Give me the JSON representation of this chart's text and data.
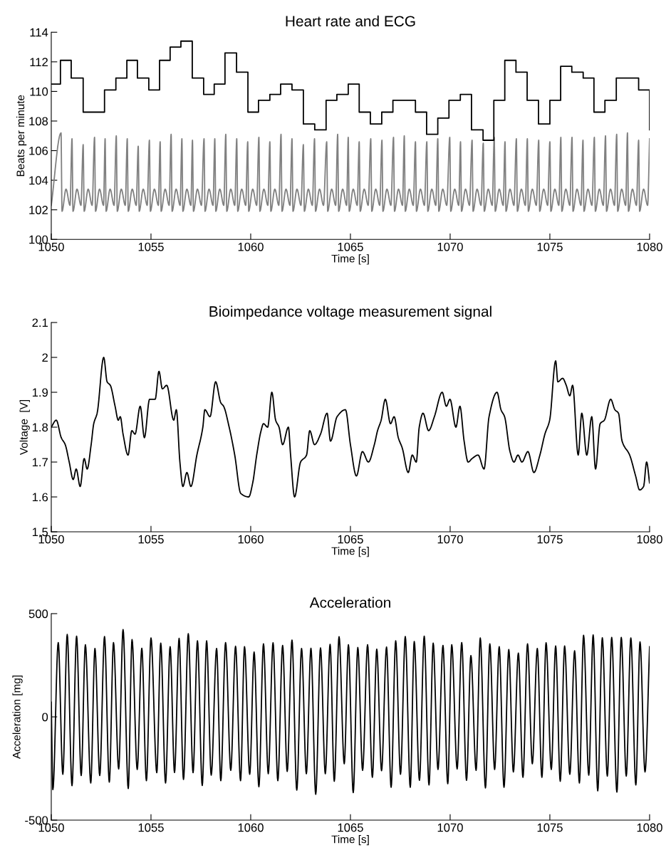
{
  "chart_data": [
    {
      "type": "line",
      "title": "Heart rate and ECG",
      "xlabel": "Time [s]",
      "ylabel": "Beats per minute",
      "xlim": [
        1050,
        1080
      ],
      "ylim": [
        100,
        114
      ],
      "xticks": [
        1050,
        1055,
        1060,
        1065,
        1070,
        1075,
        1080
      ],
      "yticks": [
        100,
        102,
        104,
        106,
        108,
        110,
        112,
        114
      ],
      "series": [
        {
          "type": "line",
          "color": "#808080",
          "x": [
            1050.0,
            1050.49,
            1050.54,
            1050.74,
            1050.94,
            1051.04,
            1051.09,
            1051.29,
            1051.49,
            1051.6,
            1051.65,
            1051.85,
            1052.05,
            1052.17,
            1052.22,
            1052.42,
            1052.62,
            1052.7,
            1052.75,
            1052.95,
            1053.15,
            1053.26,
            1053.31,
            1053.51,
            1053.71,
            1053.81,
            1053.86,
            1054.06,
            1054.26,
            1054.36,
            1054.41,
            1054.61,
            1054.81,
            1054.92,
            1054.97,
            1055.17,
            1055.37,
            1055.46,
            1055.51,
            1055.71,
            1055.91,
            1056.01,
            1056.06,
            1056.26,
            1056.46,
            1056.55,
            1056.6,
            1056.8,
            1057.0,
            1057.08,
            1057.13,
            1057.33,
            1057.53,
            1057.66,
            1057.71,
            1057.91,
            1058.11,
            1058.2,
            1058.25,
            1058.45,
            1058.65,
            1058.75,
            1058.8,
            1059.0,
            1059.2,
            1059.3,
            1059.35,
            1059.55,
            1059.75,
            1059.85,
            1059.9,
            1060.1,
            1060.3,
            1060.41,
            1060.46,
            1060.66,
            1060.86,
            1060.96,
            1061.01,
            1061.21,
            1061.41,
            1061.52,
            1061.57,
            1061.77,
            1061.97,
            1062.07,
            1062.12,
            1062.32,
            1062.52,
            1062.64,
            1062.69,
            1062.89,
            1063.09,
            1063.2,
            1063.25,
            1063.45,
            1063.65,
            1063.81,
            1063.86,
            1064.06,
            1064.26,
            1064.36,
            1064.41,
            1064.61,
            1064.81,
            1064.89,
            1064.94,
            1065.14,
            1065.34,
            1065.44,
            1065.49,
            1065.69,
            1065.89,
            1066.02,
            1066.07,
            1066.27,
            1066.47,
            1066.58,
            1066.63,
            1066.83,
            1067.03,
            1067.16,
            1067.21,
            1067.41,
            1067.61,
            1067.7,
            1067.75,
            1067.95,
            1068.15,
            1068.26,
            1068.31,
            1068.51,
            1068.71,
            1068.83,
            1068.88,
            1069.08,
            1069.28,
            1069.38,
            1069.43,
            1069.63,
            1069.83,
            1069.98,
            1070.03,
            1070.23,
            1070.43,
            1070.52,
            1070.57,
            1070.77,
            1070.97,
            1071.1,
            1071.15,
            1071.35,
            1071.55,
            1071.66,
            1071.71,
            1071.91,
            1072.11,
            1072.21,
            1072.26,
            1072.46,
            1072.66,
            1072.75,
            1072.8,
            1073.0,
            1073.2,
            1073.32,
            1073.37,
            1073.57,
            1073.77,
            1073.87,
            1073.92,
            1074.12,
            1074.32,
            1074.44,
            1074.49,
            1074.69,
            1074.89,
            1075.0,
            1075.05,
            1075.25,
            1075.45,
            1075.55,
            1075.6,
            1075.8,
            1076.0,
            1076.11,
            1076.16,
            1076.36,
            1076.56,
            1076.66,
            1076.71,
            1076.91,
            1077.11,
            1077.23,
            1077.28,
            1077.48,
            1077.68,
            1077.79,
            1077.84,
            1078.04,
            1078.24,
            1078.35,
            1078.4,
            1078.6,
            1078.8,
            1078.89,
            1078.94,
            1079.14,
            1079.34,
            1079.45,
            1079.5,
            1079.7,
            1079.9,
            1080.0
          ],
          "values": [
            102.3,
            107.2,
            101.9,
            103.4,
            102.3,
            106.8,
            101.9,
            103.4,
            102.3,
            106.4,
            101.9,
            103.4,
            102.3,
            106.9,
            101.9,
            103.4,
            102.3,
            106.8,
            101.9,
            103.4,
            102.3,
            107.0,
            101.9,
            103.4,
            102.3,
            106.8,
            101.9,
            103.4,
            102.3,
            106.3,
            101.9,
            103.4,
            102.3,
            106.7,
            101.9,
            103.4,
            102.3,
            106.6,
            101.9,
            103.4,
            102.3,
            107.1,
            101.9,
            103.4,
            102.3,
            106.8,
            101.9,
            103.4,
            102.3,
            106.7,
            101.9,
            103.4,
            102.3,
            106.8,
            101.9,
            103.4,
            102.3,
            106.8,
            101.9,
            103.4,
            102.3,
            107.1,
            101.9,
            103.4,
            102.3,
            106.8,
            101.9,
            103.4,
            102.3,
            106.6,
            101.9,
            103.4,
            102.3,
            106.9,
            101.9,
            103.4,
            102.3,
            106.6,
            101.9,
            103.4,
            102.3,
            107.1,
            101.9,
            103.4,
            102.3,
            106.8,
            101.9,
            103.4,
            102.3,
            106.4,
            101.9,
            103.4,
            102.3,
            106.8,
            101.9,
            103.4,
            102.3,
            106.6,
            101.9,
            103.4,
            102.3,
            107.1,
            101.9,
            103.4,
            102.3,
            106.9,
            101.9,
            103.4,
            102.3,
            106.6,
            101.9,
            103.4,
            102.3,
            106.8,
            101.9,
            103.4,
            102.3,
            106.7,
            101.9,
            103.4,
            102.3,
            106.9,
            101.9,
            103.4,
            102.3,
            107.0,
            101.9,
            103.4,
            102.3,
            106.6,
            101.9,
            103.4,
            102.3,
            106.6,
            101.9,
            103.4,
            102.3,
            106.8,
            101.9,
            103.4,
            102.3,
            106.9,
            101.9,
            103.4,
            102.3,
            106.6,
            101.9,
            103.4,
            102.3,
            106.7,
            101.9,
            103.4,
            102.3,
            106.5,
            101.9,
            103.4,
            102.3,
            106.9,
            101.9,
            103.4,
            102.3,
            106.6,
            101.9,
            103.4,
            102.3,
            106.8,
            101.9,
            103.4,
            102.3,
            106.8,
            101.9,
            103.4,
            102.3,
            106.7,
            101.9,
            103.4,
            102.3,
            106.6,
            101.9,
            103.4,
            102.3,
            106.9,
            101.9,
            103.4,
            102.3,
            106.9,
            101.9,
            103.4,
            102.3,
            106.7,
            101.9,
            103.4,
            102.3,
            106.9,
            101.9,
            103.4,
            102.3,
            107.0,
            101.9,
            103.4,
            102.3,
            107.1,
            101.9,
            103.4,
            102.3,
            107.2,
            101.9,
            103.4,
            102.3,
            106.7,
            101.9,
            103.4,
            102.3,
            106.8
          ]
        },
        {
          "type": "step",
          "color": "#000000",
          "x": [
            1050.0,
            1050.46,
            1051.0,
            1051.6,
            1052.67,
            1053.24,
            1053.79,
            1054.32,
            1054.89,
            1055.43,
            1055.96,
            1056.5,
            1057.07,
            1057.64,
            1058.17,
            1058.71,
            1059.29,
            1059.86,
            1060.39,
            1060.96,
            1061.5,
            1062.07,
            1062.64,
            1063.21,
            1063.78,
            1064.32,
            1064.89,
            1065.44,
            1066.0,
            1066.57,
            1067.13,
            1068.26,
            1068.82,
            1069.38,
            1069.94,
            1070.51,
            1071.07,
            1071.65,
            1072.19,
            1072.74,
            1073.3,
            1073.86,
            1074.43,
            1075.0,
            1075.54,
            1076.1,
            1076.67,
            1077.21,
            1077.76,
            1078.33,
            1079.45,
            1080.0
          ],
          "values": [
            110.5,
            112.1,
            110.9,
            108.6,
            110.1,
            110.9,
            112.1,
            110.9,
            110.1,
            112.1,
            113.0,
            113.4,
            110.9,
            109.8,
            110.5,
            112.6,
            111.3,
            108.6,
            109.4,
            109.8,
            110.5,
            110.1,
            107.8,
            107.4,
            109.4,
            109.8,
            110.5,
            108.6,
            107.8,
            108.6,
            109.4,
            108.6,
            107.1,
            108.2,
            109.4,
            109.8,
            107.4,
            106.7,
            109.4,
            112.1,
            111.3,
            109.4,
            107.8,
            109.4,
            111.7,
            111.3,
            110.9,
            108.6,
            109.4,
            110.9,
            110.1,
            107.4
          ]
        }
      ]
    },
    {
      "type": "line",
      "title": "Bioimpedance voltage measurement signal",
      "xlabel": "Time [s]",
      "ylabel": "Voltage  [V]",
      "xlim": [
        1050,
        1080
      ],
      "ylim": [
        1.5,
        2.1
      ],
      "xticks": [
        1050,
        1055,
        1060,
        1065,
        1070,
        1075,
        1080
      ],
      "yticks": [
        1.5,
        1.6,
        1.7,
        1.8,
        1.9,
        2,
        2.1
      ],
      "series": [
        {
          "type": "line",
          "color": "#000000",
          "x": [
            1050.0,
            1050.25,
            1050.5,
            1050.7,
            1050.9,
            1051.1,
            1051.25,
            1051.45,
            1051.65,
            1051.8,
            1052.0,
            1052.13,
            1052.3,
            1052.63,
            1052.8,
            1052.96,
            1053.2,
            1053.36,
            1053.46,
            1053.6,
            1053.85,
            1054.04,
            1054.2,
            1054.46,
            1054.67,
            1054.93,
            1055.21,
            1055.4,
            1055.57,
            1055.79,
            1056.14,
            1056.27,
            1056.45,
            1056.6,
            1056.8,
            1057.0,
            1057.3,
            1057.6,
            1057.7,
            1057.96,
            1058.24,
            1058.5,
            1058.64,
            1058.92,
            1059.2,
            1059.5,
            1059.9,
            1060.1,
            1060.3,
            1060.52,
            1060.64,
            1060.85,
            1061.06,
            1061.25,
            1061.42,
            1061.6,
            1061.89,
            1062.0,
            1062.2,
            1062.5,
            1062.8,
            1062.96,
            1063.2,
            1063.5,
            1063.83,
            1064.0,
            1064.33,
            1064.75,
            1065.0,
            1065.3,
            1065.6,
            1065.9,
            1066.2,
            1066.36,
            1066.54,
            1066.75,
            1067.01,
            1067.19,
            1067.4,
            1067.6,
            1067.9,
            1068.1,
            1068.3,
            1068.45,
            1068.64,
            1068.92,
            1069.21,
            1069.6,
            1069.81,
            1069.99,
            1070.29,
            1070.49,
            1070.7,
            1070.9,
            1071.1,
            1071.4,
            1071.7,
            1071.95,
            1072.35,
            1072.55,
            1072.73,
            1073.0,
            1073.2,
            1073.4,
            1073.6,
            1073.9,
            1074.2,
            1074.5,
            1074.75,
            1074.99,
            1075.29,
            1075.4,
            1075.64,
            1075.82,
            1076.0,
            1076.14,
            1076.42,
            1076.6,
            1076.85,
            1077.1,
            1077.29,
            1077.52,
            1077.73,
            1078.05,
            1078.26,
            1078.44,
            1078.62,
            1079.0,
            1079.3,
            1079.5,
            1079.7,
            1079.85,
            1080.0
          ],
          "values": [
            1.8,
            1.82,
            1.77,
            1.75,
            1.7,
            1.65,
            1.68,
            1.63,
            1.71,
            1.68,
            1.75,
            1.81,
            1.84,
            2.0,
            1.93,
            1.92,
            1.86,
            1.82,
            1.83,
            1.78,
            1.72,
            1.79,
            1.78,
            1.86,
            1.77,
            1.88,
            1.88,
            1.96,
            1.91,
            1.92,
            1.82,
            1.85,
            1.7,
            1.63,
            1.67,
            1.63,
            1.72,
            1.8,
            1.85,
            1.83,
            1.93,
            1.87,
            1.86,
            1.8,
            1.72,
            1.61,
            1.6,
            1.64,
            1.72,
            1.79,
            1.81,
            1.8,
            1.9,
            1.82,
            1.8,
            1.75,
            1.8,
            1.72,
            1.6,
            1.7,
            1.72,
            1.79,
            1.75,
            1.78,
            1.84,
            1.76,
            1.83,
            1.85,
            1.75,
            1.66,
            1.73,
            1.7,
            1.75,
            1.79,
            1.82,
            1.88,
            1.81,
            1.83,
            1.77,
            1.74,
            1.67,
            1.72,
            1.7,
            1.8,
            1.84,
            1.79,
            1.83,
            1.9,
            1.86,
            1.88,
            1.8,
            1.86,
            1.76,
            1.7,
            1.71,
            1.72,
            1.68,
            1.83,
            1.9,
            1.85,
            1.83,
            1.73,
            1.7,
            1.72,
            1.7,
            1.73,
            1.67,
            1.72,
            1.78,
            1.82,
            1.99,
            1.93,
            1.94,
            1.92,
            1.89,
            1.92,
            1.72,
            1.84,
            1.72,
            1.83,
            1.68,
            1.81,
            1.82,
            1.88,
            1.85,
            1.84,
            1.76,
            1.72,
            1.66,
            1.62,
            1.63,
            1.7,
            1.64
          ]
        }
      ]
    },
    {
      "type": "line",
      "title": "Acceleration",
      "xlabel": "Time [s]",
      "ylabel": "Acceleration [mg]",
      "xlim": [
        1050,
        1080
      ],
      "ylim": [
        -500,
        500
      ],
      "xticks": [
        1050,
        1055,
        1060,
        1065,
        1070,
        1075,
        1080
      ],
      "yticks": [
        -500,
        0,
        500
      ],
      "series": [
        {
          "type": "line",
          "color": "#000000",
          "x": [
            1050.0,
            1050.08,
            1050.35,
            1050.58,
            1050.8,
            1051.04,
            1051.27,
            1051.5,
            1051.71,
            1051.98,
            1052.19,
            1052.43,
            1052.67,
            1052.91,
            1053.12,
            1053.38,
            1053.6,
            1053.86,
            1054.05,
            1054.31,
            1054.54,
            1054.77,
            1055.0,
            1055.29,
            1055.49,
            1055.73,
            1055.96,
            1056.18,
            1056.41,
            1056.63,
            1056.87,
            1057.11,
            1057.33,
            1057.57,
            1057.79,
            1058.02,
            1058.29,
            1058.5,
            1058.74,
            1059.0,
            1059.24,
            1059.49,
            1059.69,
            1059.95,
            1060.17,
            1060.41,
            1060.64,
            1060.88,
            1061.12,
            1061.36,
            1061.6,
            1061.83,
            1062.07,
            1062.31,
            1062.55,
            1062.79,
            1063.02,
            1063.26,
            1063.5,
            1063.74,
            1063.98,
            1064.19,
            1064.43,
            1064.69,
            1064.9,
            1065.14,
            1065.37,
            1065.61,
            1065.86,
            1066.1,
            1066.32,
            1066.56,
            1066.81,
            1067.04,
            1067.27,
            1067.51,
            1067.75,
            1068.0,
            1068.2,
            1068.46,
            1068.7,
            1068.94,
            1069.15,
            1069.39,
            1069.64,
            1069.88,
            1070.08,
            1070.35,
            1070.58,
            1070.82,
            1071.04,
            1071.3,
            1071.51,
            1071.77,
            1071.99,
            1072.23,
            1072.46,
            1072.7,
            1072.94,
            1073.17,
            1073.42,
            1073.65,
            1073.88,
            1074.12,
            1074.37,
            1074.6,
            1074.81,
            1075.07,
            1075.29,
            1075.52,
            1075.74,
            1076.0,
            1076.24,
            1076.48,
            1076.69,
            1076.95,
            1077.17,
            1077.4,
            1077.63,
            1077.88,
            1078.1,
            1078.36,
            1078.58,
            1078.83,
            1079.06,
            1079.31,
            1079.52,
            1079.77,
            1080.0
          ],
          "values": [
            71,
            -352,
            360,
            -278,
            399,
            -333,
            391,
            -284,
            349,
            -320,
            331,
            -284,
            389,
            -316,
            360,
            -252,
            423,
            -347,
            374,
            -255,
            332,
            -309,
            382,
            -270,
            357,
            -320,
            340,
            -269,
            380,
            -303,
            403,
            -270,
            368,
            -332,
            368,
            -282,
            331,
            -309,
            360,
            -259,
            342,
            -309,
            340,
            -278,
            314,
            -338,
            354,
            -275,
            359,
            -309,
            346,
            -264,
            372,
            -355,
            331,
            -275,
            332,
            -375,
            334,
            -275,
            351,
            -312,
            388,
            -227,
            349,
            -367,
            336,
            -259,
            349,
            -293,
            328,
            -261,
            338,
            -341,
            368,
            -278,
            389,
            -341,
            365,
            -307,
            391,
            -330,
            357,
            -255,
            346,
            -324,
            349,
            -252,
            360,
            -307,
            297,
            -259,
            382,
            -344,
            354,
            -255,
            340,
            -341,
            326,
            -267,
            309,
            -293,
            354,
            -227,
            331,
            -293,
            359,
            -255,
            343,
            -312,
            343,
            -278,
            320,
            -320,
            395,
            -282,
            397,
            -358,
            383,
            -287,
            385,
            -364,
            385,
            -287,
            382,
            -330,
            363,
            -267,
            340
          ]
        }
      ]
    }
  ]
}
